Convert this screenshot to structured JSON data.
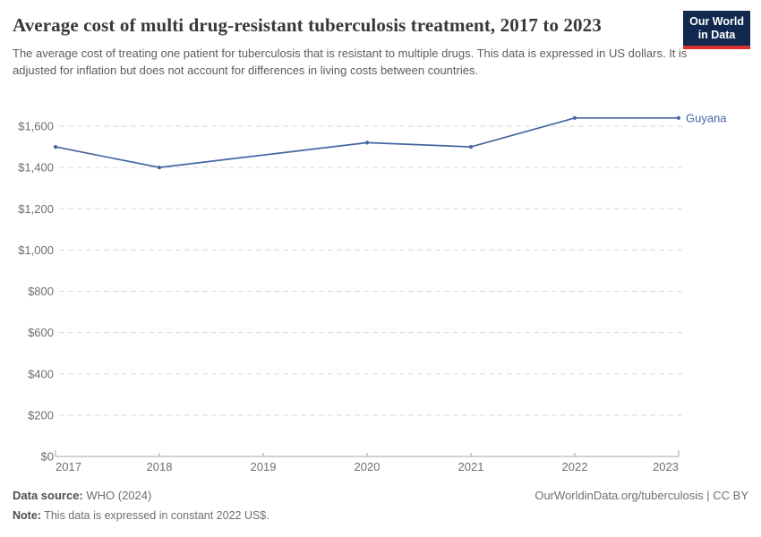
{
  "header": {
    "title": "Average cost of multi drug-resistant tuberculosis treatment, 2017 to 2023",
    "subtitle": "The average cost of treating one patient for tuberculosis that is resistant to multiple drugs. This data is expressed in US dollars. It is adjusted for inflation but does not account for differences in living costs between countries.",
    "logo": {
      "line1": "Our World",
      "line2": "in Data"
    }
  },
  "chart_data": {
    "type": "line",
    "title": "Average cost of multi drug-resistant tuberculosis treatment, 2017 to 2023",
    "x": [
      2017,
      2018,
      2020,
      2021,
      2022,
      2023
    ],
    "series": [
      {
        "name": "Guyana",
        "values": [
          1500,
          1400,
          1520,
          1500,
          1640,
          1640
        ],
        "color": "#4565a0"
      }
    ],
    "missing_years": [
      2019
    ],
    "x_ticks": [
      2017,
      2018,
      2019,
      2020,
      2021,
      2022,
      2023
    ],
    "y_ticks": [
      0,
      200,
      400,
      600,
      800,
      1000,
      1200,
      1400,
      1600
    ],
    "xlim": [
      2017,
      2023
    ],
    "ylim": [
      0,
      1600
    ],
    "y_prefix": "$",
    "xlabel": "",
    "ylabel": "",
    "grid": "horizontal-dashed",
    "legend_position": "end-of-line",
    "markers": true
  },
  "colors": {
    "grid": "#d9d9d9",
    "axis": "#a6a6a6",
    "tick_text": "#6e6e6e",
    "series_label": "#4565a0"
  },
  "footer": {
    "data_source_label": "Data source:",
    "data_source_value": " WHO (2024)",
    "attribution": "OurWorldinData.org/tuberculosis | CC BY",
    "note_label": "Note:",
    "note_value": " This data is expressed in constant 2022 US$."
  }
}
